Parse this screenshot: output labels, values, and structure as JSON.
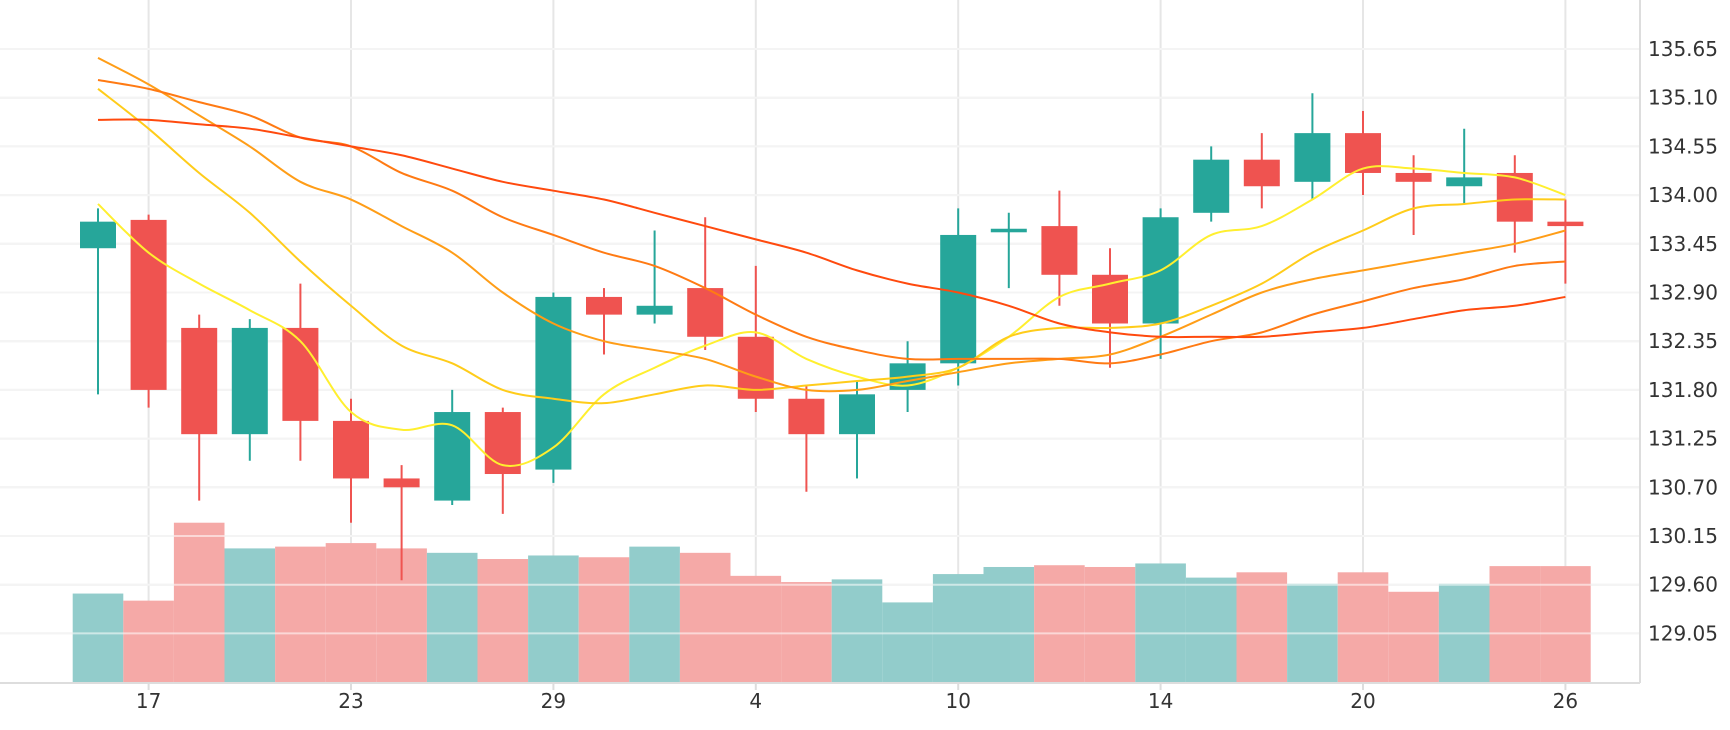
{
  "chart_data": {
    "type": "candlestick",
    "x_tick_labels": [
      "17",
      "23",
      "29",
      "4",
      "10",
      "14",
      "20",
      "26"
    ],
    "x_tick_indices": [
      1,
      5,
      9,
      13,
      17,
      21,
      25,
      29
    ],
    "y_tick_labels": [
      "135.65",
      "135.10",
      "134.55",
      "134.00",
      "133.45",
      "132.90",
      "132.35",
      "131.80",
      "131.25",
      "130.70",
      "130.15",
      "129.60",
      "129.05"
    ],
    "ylim": [
      128.55,
      135.93
    ],
    "grid": true,
    "colors": {
      "up": "#26a69a",
      "down": "#ef5350",
      "volume_up": "#92cccb",
      "volume_down": "#f5a9a7",
      "ma_5": "#ffef2f",
      "ma_10": "#ffcc1a",
      "ma_20": "#ff9d17",
      "ma_30": "#ff7a13",
      "ma_60": "#ff4a0e"
    },
    "candles": [
      {
        "o": 133.4,
        "c": 133.7,
        "h": 133.85,
        "l": 131.75
      },
      {
        "o": 133.72,
        "c": 131.8,
        "h": 133.78,
        "l": 131.6
      },
      {
        "o": 132.5,
        "c": 131.3,
        "h": 132.65,
        "l": 130.55
      },
      {
        "o": 131.3,
        "c": 132.5,
        "h": 132.6,
        "l": 131.0
      },
      {
        "o": 132.5,
        "c": 131.45,
        "h": 133.0,
        "l": 131.0
      },
      {
        "o": 131.45,
        "c": 130.8,
        "h": 131.7,
        "l": 130.3
      },
      {
        "o": 130.8,
        "c": 130.7,
        "h": 130.95,
        "l": 129.65
      },
      {
        "o": 130.55,
        "c": 131.55,
        "h": 131.8,
        "l": 130.5
      },
      {
        "o": 131.55,
        "c": 130.85,
        "h": 131.6,
        "l": 130.4
      },
      {
        "o": 130.9,
        "c": 132.85,
        "h": 132.9,
        "l": 130.75
      },
      {
        "o": 132.85,
        "c": 132.65,
        "h": 132.95,
        "l": 132.2
      },
      {
        "o": 132.65,
        "c": 132.75,
        "h": 133.6,
        "l": 132.55
      },
      {
        "o": 132.95,
        "c": 132.4,
        "h": 133.75,
        "l": 132.25
      },
      {
        "o": 132.4,
        "c": 131.7,
        "h": 133.2,
        "l": 131.55
      },
      {
        "o": 131.7,
        "c": 131.3,
        "h": 131.85,
        "l": 130.65
      },
      {
        "o": 131.3,
        "c": 131.75,
        "h": 131.9,
        "l": 130.8
      },
      {
        "o": 131.8,
        "c": 132.1,
        "h": 132.35,
        "l": 131.55
      },
      {
        "o": 132.1,
        "c": 133.55,
        "h": 133.85,
        "l": 131.85
      },
      {
        "o": 133.58,
        "c": 133.62,
        "h": 133.8,
        "l": 132.95
      },
      {
        "o": 133.65,
        "c": 133.1,
        "h": 134.05,
        "l": 132.75
      },
      {
        "o": 133.1,
        "c": 132.55,
        "h": 133.4,
        "l": 132.05
      },
      {
        "o": 132.55,
        "c": 133.75,
        "h": 133.85,
        "l": 132.15
      },
      {
        "o": 133.8,
        "c": 134.4,
        "h": 134.55,
        "l": 133.7
      },
      {
        "o": 134.4,
        "c": 134.1,
        "h": 134.7,
        "l": 133.85
      },
      {
        "o": 134.15,
        "c": 134.7,
        "h": 135.15,
        "l": 133.95
      },
      {
        "o": 134.7,
        "c": 134.25,
        "h": 134.95,
        "l": 134.0
      },
      {
        "o": 134.25,
        "c": 134.15,
        "h": 134.45,
        "l": 133.55
      },
      {
        "o": 134.1,
        "c": 134.2,
        "h": 134.75,
        "l": 133.9
      },
      {
        "o": 134.25,
        "c": 133.7,
        "h": 134.45,
        "l": 133.35
      },
      {
        "o": 133.7,
        "c": 133.65,
        "h": 133.95,
        "l": 133.0
      }
    ],
    "volume": [
      129.5,
      129.42,
      130.3,
      130.01,
      130.03,
      130.07,
      130.01,
      129.96,
      129.89,
      129.93,
      129.91,
      130.03,
      129.96,
      129.7,
      129.63,
      129.66,
      129.4,
      129.72,
      129.8,
      129.82,
      129.8,
      129.84,
      129.68,
      129.74,
      129.61,
      129.74,
      129.52,
      129.61,
      129.81,
      129.81
    ],
    "volume_note_baseline": 128.55,
    "ma_lines": [
      {
        "key": "ma_5",
        "points": [
          [
            0,
            133.9
          ],
          [
            1,
            133.35
          ],
          [
            2,
            133.0
          ],
          [
            3,
            132.7
          ],
          [
            4,
            132.35
          ],
          [
            5,
            131.55
          ],
          [
            6,
            131.35
          ],
          [
            7,
            131.4
          ],
          [
            8,
            130.95
          ],
          [
            9,
            131.15
          ],
          [
            10,
            131.75
          ],
          [
            11,
            132.05
          ],
          [
            12,
            132.3
          ],
          [
            13,
            132.45
          ],
          [
            14,
            132.15
          ],
          [
            15,
            131.95
          ],
          [
            16,
            131.85
          ],
          [
            17,
            132.05
          ],
          [
            18,
            132.4
          ],
          [
            19,
            132.85
          ],
          [
            20,
            133.0
          ],
          [
            21,
            133.15
          ],
          [
            22,
            133.55
          ],
          [
            23,
            133.65
          ],
          [
            24,
            133.95
          ],
          [
            25,
            134.3
          ],
          [
            26,
            134.3
          ],
          [
            27,
            134.25
          ],
          [
            28,
            134.2
          ],
          [
            29,
            134.0
          ]
        ]
      },
      {
        "key": "ma_10",
        "points": [
          [
            0,
            135.2
          ],
          [
            1,
            134.75
          ],
          [
            2,
            134.25
          ],
          [
            3,
            133.8
          ],
          [
            4,
            133.25
          ],
          [
            5,
            132.75
          ],
          [
            6,
            132.3
          ],
          [
            7,
            132.1
          ],
          [
            8,
            131.8
          ],
          [
            9,
            131.7
          ],
          [
            10,
            131.65
          ],
          [
            11,
            131.75
          ],
          [
            12,
            131.85
          ],
          [
            13,
            131.8
          ],
          [
            14,
            131.85
          ],
          [
            15,
            131.9
          ],
          [
            16,
            131.95
          ],
          [
            17,
            132.05
          ],
          [
            18,
            132.4
          ],
          [
            19,
            132.5
          ],
          [
            20,
            132.5
          ],
          [
            21,
            132.55
          ],
          [
            22,
            132.75
          ],
          [
            23,
            133.0
          ],
          [
            24,
            133.35
          ],
          [
            25,
            133.6
          ],
          [
            26,
            133.85
          ],
          [
            27,
            133.9
          ],
          [
            28,
            133.95
          ],
          [
            29,
            133.95
          ]
        ]
      },
      {
        "key": "ma_20",
        "points": [
          [
            0,
            135.55
          ],
          [
            1,
            135.25
          ],
          [
            2,
            134.9
          ],
          [
            3,
            134.55
          ],
          [
            4,
            134.15
          ],
          [
            5,
            133.95
          ],
          [
            6,
            133.65
          ],
          [
            7,
            133.35
          ],
          [
            8,
            132.9
          ],
          [
            9,
            132.55
          ],
          [
            10,
            132.35
          ],
          [
            11,
            132.25
          ],
          [
            12,
            132.15
          ],
          [
            13,
            131.95
          ],
          [
            14,
            131.8
          ],
          [
            15,
            131.8
          ],
          [
            16,
            131.9
          ],
          [
            17,
            132.0
          ],
          [
            18,
            132.1
          ],
          [
            19,
            132.15
          ],
          [
            20,
            132.2
          ],
          [
            21,
            132.4
          ],
          [
            22,
            132.65
          ],
          [
            23,
            132.9
          ],
          [
            24,
            133.05
          ],
          [
            25,
            133.15
          ],
          [
            26,
            133.25
          ],
          [
            27,
            133.35
          ],
          [
            28,
            133.45
          ],
          [
            29,
            133.6
          ]
        ]
      },
      {
        "key": "ma_30",
        "points": [
          [
            0,
            135.3
          ],
          [
            1,
            135.2
          ],
          [
            2,
            135.05
          ],
          [
            3,
            134.9
          ],
          [
            4,
            134.65
          ],
          [
            5,
            134.55
          ],
          [
            6,
            134.25
          ],
          [
            7,
            134.05
          ],
          [
            8,
            133.75
          ],
          [
            9,
            133.55
          ],
          [
            10,
            133.35
          ],
          [
            11,
            133.2
          ],
          [
            12,
            132.95
          ],
          [
            13,
            132.65
          ],
          [
            14,
            132.4
          ],
          [
            15,
            132.25
          ],
          [
            16,
            132.15
          ],
          [
            17,
            132.15
          ],
          [
            18,
            132.15
          ],
          [
            19,
            132.15
          ],
          [
            20,
            132.1
          ],
          [
            21,
            132.2
          ],
          [
            22,
            132.35
          ],
          [
            23,
            132.45
          ],
          [
            24,
            132.65
          ],
          [
            25,
            132.8
          ],
          [
            26,
            132.95
          ],
          [
            27,
            133.05
          ],
          [
            28,
            133.2
          ],
          [
            29,
            133.25
          ]
        ]
      },
      {
        "key": "ma_60",
        "points": [
          [
            0,
            134.85
          ],
          [
            1,
            134.85
          ],
          [
            2,
            134.8
          ],
          [
            3,
            134.75
          ],
          [
            4,
            134.65
          ],
          [
            5,
            134.55
          ],
          [
            6,
            134.45
          ],
          [
            7,
            134.3
          ],
          [
            8,
            134.15
          ],
          [
            9,
            134.05
          ],
          [
            10,
            133.95
          ],
          [
            11,
            133.8
          ],
          [
            12,
            133.65
          ],
          [
            13,
            133.5
          ],
          [
            14,
            133.35
          ],
          [
            15,
            133.15
          ],
          [
            16,
            133.0
          ],
          [
            17,
            132.9
          ],
          [
            18,
            132.75
          ],
          [
            19,
            132.55
          ],
          [
            20,
            132.45
          ],
          [
            21,
            132.4
          ],
          [
            22,
            132.4
          ],
          [
            23,
            132.4
          ],
          [
            24,
            132.45
          ],
          [
            25,
            132.5
          ],
          [
            26,
            132.6
          ],
          [
            27,
            132.7
          ],
          [
            28,
            132.75
          ],
          [
            29,
            132.85
          ]
        ]
      }
    ]
  }
}
